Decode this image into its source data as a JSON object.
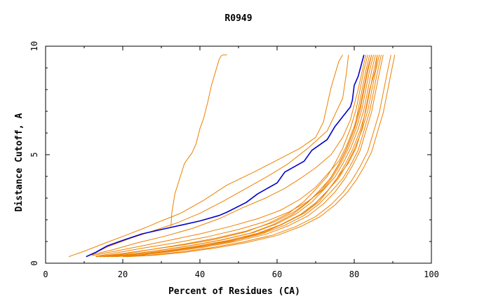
{
  "chart_data": {
    "type": "line",
    "title": "R0949",
    "xlabel": "Percent of Residues (CA)",
    "ylabel": "Distance Cutoff, A",
    "xlim": [
      0,
      100
    ],
    "ylim": [
      0,
      10
    ],
    "x_ticks": [
      "0",
      "20",
      "40",
      "60",
      "80",
      "100"
    ],
    "y_ticks": [
      "0",
      "5",
      "10"
    ],
    "grid": false,
    "legend": "none",
    "colors": {
      "highlight": "#0000cc",
      "others": "#ee8000",
      "axes": "#000000"
    },
    "highlight_series": {
      "x": [
        10.5,
        13,
        16,
        20,
        25,
        30,
        35,
        40,
        45,
        47,
        52,
        55,
        60,
        62,
        67,
        69,
        73,
        75,
        79,
        79.5,
        80,
        81,
        82.5
      ],
      "y": [
        0.3,
        0.5,
        0.8,
        1.05,
        1.35,
        1.55,
        1.75,
        1.95,
        2.2,
        2.35,
        2.8,
        3.2,
        3.7,
        4.2,
        4.7,
        5.2,
        5.7,
        6.3,
        7.2,
        7.5,
        8.2,
        8.6,
        9.6
      ]
    },
    "other_series": [
      {
        "x": [
          32.5,
          32.7,
          33.5,
          36,
          38,
          39,
          40,
          41,
          42,
          43,
          44,
          45,
          45.5,
          46,
          47
        ],
        "y": [
          1.7,
          2.3,
          3.2,
          4.6,
          5.1,
          5.5,
          6.2,
          6.7,
          7.4,
          8.2,
          8.8,
          9.4,
          9.55,
          9.6,
          9.6
        ]
      },
      {
        "x": [
          6,
          10,
          15,
          21,
          26,
          30,
          35,
          41,
          47,
          54,
          60,
          66,
          70,
          72,
          73,
          74,
          75,
          76,
          77
        ],
        "y": [
          0.3,
          0.55,
          0.9,
          1.3,
          1.65,
          1.95,
          2.3,
          2.9,
          3.6,
          4.2,
          4.75,
          5.3,
          5.8,
          6.5,
          7.3,
          8.1,
          8.7,
          9.3,
          9.6
        ]
      },
      {
        "x": [
          12,
          16,
          22,
          28,
          34,
          40,
          46,
          52,
          58,
          63,
          68,
          73,
          77,
          78,
          78.5
        ],
        "y": [
          0.4,
          0.75,
          1.15,
          1.5,
          1.85,
          2.3,
          2.85,
          3.45,
          4.05,
          4.6,
          5.3,
          6.1,
          7.6,
          8.8,
          9.6
        ]
      },
      {
        "x": [
          11,
          17,
          24,
          31,
          38,
          45,
          51,
          57,
          62,
          66,
          70,
          74,
          77,
          79,
          80,
          81,
          82,
          83
        ],
        "y": [
          0.35,
          0.6,
          0.95,
          1.25,
          1.6,
          2.05,
          2.55,
          3.0,
          3.45,
          3.9,
          4.4,
          5.0,
          5.8,
          6.6,
          7.3,
          8.0,
          8.8,
          9.6
        ]
      },
      {
        "x": [
          13,
          20,
          28,
          36,
          44,
          52,
          58,
          63,
          67,
          70,
          73,
          75,
          77,
          79,
          80.5,
          81.5,
          82.5,
          83.5
        ],
        "y": [
          0.3,
          0.45,
          0.65,
          0.85,
          1.1,
          1.45,
          1.85,
          2.3,
          2.85,
          3.4,
          4.0,
          4.6,
          5.3,
          6.2,
          7.1,
          8.0,
          8.9,
          9.6
        ]
      },
      {
        "x": [
          14,
          21,
          29,
          37,
          45,
          53,
          59,
          64,
          68,
          71,
          74,
          76,
          78,
          80,
          81.5,
          82.5,
          83.5,
          84.5
        ],
        "y": [
          0.3,
          0.4,
          0.58,
          0.8,
          1.05,
          1.38,
          1.78,
          2.25,
          2.8,
          3.35,
          3.95,
          4.55,
          5.25,
          6.15,
          7.05,
          7.95,
          8.85,
          9.6
        ]
      },
      {
        "x": [
          15,
          22,
          30,
          38,
          46,
          54,
          60,
          65,
          69,
          72,
          75,
          77,
          79,
          81,
          82.5,
          83.5,
          84.5,
          85.5
        ],
        "y": [
          0.3,
          0.42,
          0.6,
          0.82,
          1.08,
          1.42,
          1.82,
          2.28,
          2.82,
          3.37,
          3.97,
          4.57,
          5.27,
          6.17,
          7.07,
          7.97,
          8.87,
          9.6
        ]
      },
      {
        "x": [
          16,
          23,
          31,
          39,
          47,
          55,
          61,
          66,
          70,
          73,
          76,
          78,
          80,
          82,
          83.5,
          84.5,
          85.5,
          86.5
        ],
        "y": [
          0.3,
          0.4,
          0.57,
          0.78,
          1.04,
          1.38,
          1.78,
          2.24,
          2.78,
          3.33,
          3.93,
          4.53,
          5.23,
          6.13,
          7.03,
          7.93,
          8.83,
          9.6
        ]
      },
      {
        "x": [
          17,
          24,
          32,
          40,
          48,
          56,
          62,
          67,
          71,
          74,
          77,
          79,
          81,
          82.5,
          84,
          85,
          86,
          87
        ],
        "y": [
          0.3,
          0.38,
          0.55,
          0.75,
          1.0,
          1.35,
          1.75,
          2.2,
          2.75,
          3.3,
          3.9,
          4.5,
          5.2,
          6.1,
          7.0,
          7.9,
          8.8,
          9.6
        ]
      },
      {
        "x": [
          18,
          25,
          33,
          41,
          49,
          57,
          63,
          68,
          72,
          75,
          77.5,
          79.5,
          81.5,
          83,
          84.5,
          85.5,
          86.5,
          87.5
        ],
        "y": [
          0.3,
          0.38,
          0.54,
          0.74,
          0.99,
          1.33,
          1.73,
          2.18,
          2.73,
          3.28,
          3.88,
          4.48,
          5.18,
          6.08,
          6.98,
          7.88,
          8.78,
          9.6
        ]
      },
      {
        "x": [
          20,
          27,
          35,
          43,
          51,
          59,
          65,
          70,
          74,
          77,
          79.5,
          81.5,
          83.5,
          85,
          86.5,
          87.5,
          88.5,
          89.5
        ],
        "y": [
          0.3,
          0.37,
          0.52,
          0.72,
          0.97,
          1.3,
          1.7,
          2.15,
          2.7,
          3.25,
          3.85,
          4.45,
          5.15,
          6.05,
          6.95,
          7.85,
          8.75,
          9.6
        ]
      },
      {
        "x": [
          21,
          28,
          36,
          44,
          52,
          60,
          66,
          71,
          75,
          78,
          80.5,
          82.5,
          84.5,
          86,
          87.5,
          88.5,
          89.5,
          90.5
        ],
        "y": [
          0.3,
          0.36,
          0.5,
          0.7,
          0.95,
          1.28,
          1.68,
          2.13,
          2.68,
          3.23,
          3.83,
          4.43,
          5.13,
          6.03,
          6.93,
          7.83,
          8.73,
          9.6
        ]
      },
      {
        "x": [
          12,
          18,
          25,
          32,
          40,
          48,
          55,
          61,
          66,
          70,
          73,
          76,
          78,
          80,
          81.5,
          82.5,
          83.5,
          84.5
        ],
        "y": [
          0.35,
          0.55,
          0.8,
          1.05,
          1.35,
          1.7,
          2.05,
          2.45,
          2.95,
          3.5,
          4.1,
          4.7,
          5.4,
          6.3,
          7.2,
          8.1,
          9.0,
          9.6
        ]
      },
      {
        "x": [
          13,
          19,
          26,
          34,
          42,
          50,
          57,
          63,
          68,
          72,
          74.5,
          76.5,
          78.5,
          80.5,
          82,
          83,
          84,
          85
        ],
        "y": [
          0.32,
          0.5,
          0.72,
          0.95,
          1.22,
          1.55,
          1.92,
          2.35,
          2.85,
          3.4,
          4.0,
          4.6,
          5.3,
          6.2,
          7.1,
          8.0,
          8.9,
          9.6
        ]
      },
      {
        "x": [
          14,
          21,
          28,
          36,
          44,
          52,
          59,
          64,
          68,
          71.5,
          74,
          76,
          78,
          80,
          81,
          82,
          83,
          84
        ],
        "y": [
          0.3,
          0.45,
          0.65,
          0.88,
          1.15,
          1.48,
          1.88,
          2.32,
          2.82,
          3.37,
          3.97,
          4.57,
          5.27,
          6.17,
          7.07,
          7.97,
          8.87,
          9.6
        ]
      },
      {
        "x": [
          16,
          24,
          33,
          42,
          50,
          57,
          62,
          67,
          71,
          73.5,
          76,
          78.5,
          80.5,
          82,
          83,
          84,
          85.5,
          86
        ],
        "y": [
          0.3,
          0.42,
          0.6,
          0.82,
          1.1,
          1.45,
          1.85,
          2.3,
          2.85,
          3.42,
          4.02,
          4.62,
          5.32,
          6.22,
          7.12,
          8.02,
          8.92,
          9.6
        ]
      },
      {
        "x": [
          15,
          23,
          31,
          39,
          47,
          55,
          61,
          66,
          70,
          73,
          75.5,
          77.5,
          79.5,
          81.5,
          83,
          84,
          85,
          86
        ],
        "y": [
          0.3,
          0.4,
          0.56,
          0.76,
          1.02,
          1.36,
          1.76,
          2.22,
          2.76,
          3.31,
          3.91,
          4.51,
          5.21,
          6.11,
          7.01,
          7.91,
          8.81,
          9.6
        ]
      }
    ]
  }
}
